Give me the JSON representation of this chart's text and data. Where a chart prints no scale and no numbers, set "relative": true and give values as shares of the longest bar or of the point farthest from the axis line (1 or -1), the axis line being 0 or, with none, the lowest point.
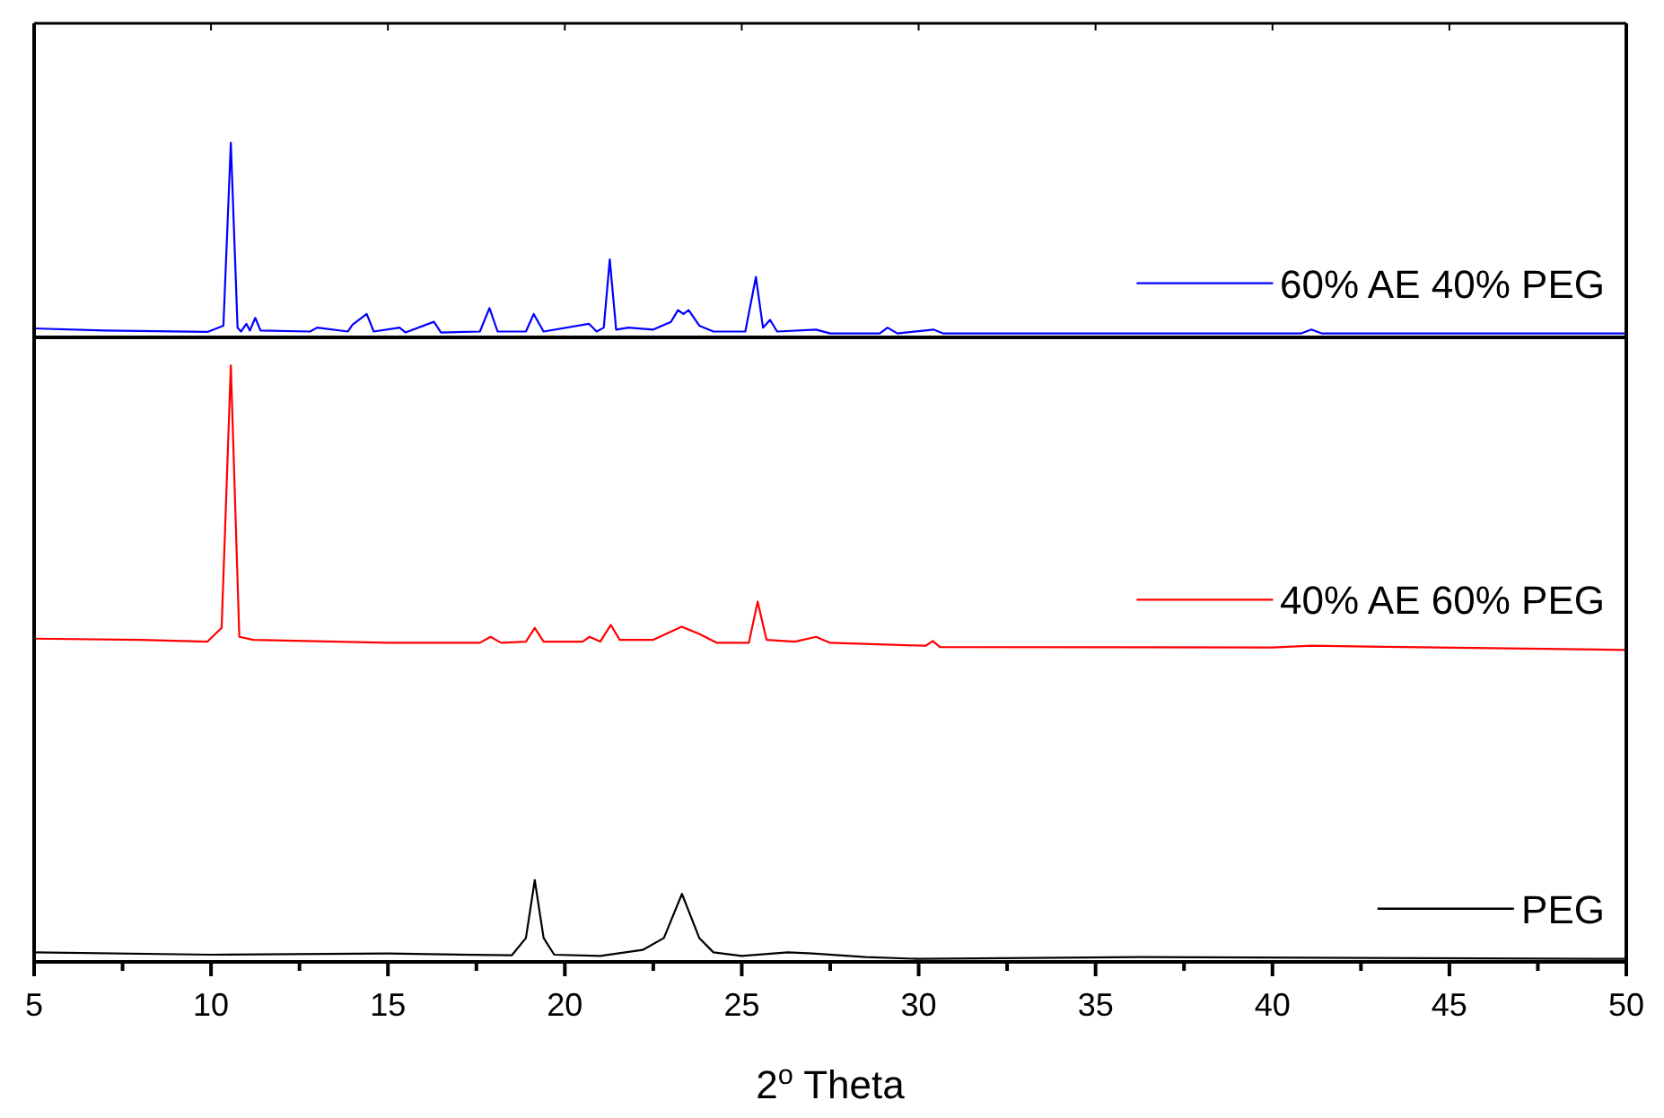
{
  "chart_data": [
    {
      "type": "line",
      "relative": true,
      "tick_labels": false,
      "legend": "right",
      "xlim": [
        5,
        50
      ],
      "xticks": [
        {
          "value": 5,
          "label": null
        },
        {
          "value": 10,
          "label": null
        },
        {
          "value": 15,
          "label": null
        },
        {
          "value": 20,
          "label": null
        },
        {
          "value": 25,
          "label": null
        },
        {
          "value": 30,
          "label": null
        },
        {
          "value": 35,
          "label": null
        },
        {
          "value": 40,
          "label": null
        },
        {
          "value": 45,
          "label": null
        },
        {
          "value": 50,
          "label": null
        }
      ],
      "series": [
        {
          "name": "60% AE 40% PEG",
          "color": "#0000ff",
          "x": [
            5,
            7,
            9.9,
            10.35,
            10.56,
            10.75,
            10.85,
            11.0,
            11.1,
            11.25,
            11.4,
            12.8,
            13.0,
            13.87,
            14.0,
            14.4,
            14.6,
            15.33,
            15.5,
            16.3,
            16.5,
            17.6,
            17.87,
            18.1,
            18.9,
            19.12,
            19.4,
            20.68,
            20.9,
            21.1,
            21.27,
            21.45,
            21.8,
            22.5,
            23.0,
            23.2,
            23.35,
            23.5,
            23.8,
            24.2,
            25.1,
            25.4,
            25.6,
            25.8,
            26.0,
            27.1,
            27.5,
            28.9,
            29.12,
            29.4,
            30.42,
            30.7,
            35,
            40.8,
            41.1,
            41.4,
            50
          ],
          "values": [
            0.046,
            0.035,
            0.028,
            0.06,
            1.0,
            0.05,
            0.03,
            0.07,
            0.035,
            0.1,
            0.035,
            0.03,
            0.05,
            0.03,
            0.065,
            0.12,
            0.03,
            0.05,
            0.025,
            0.08,
            0.025,
            0.03,
            0.15,
            0.03,
            0.03,
            0.12,
            0.03,
            0.07,
            0.03,
            0.05,
            0.4,
            0.04,
            0.05,
            0.04,
            0.08,
            0.14,
            0.12,
            0.14,
            0.06,
            0.03,
            0.03,
            0.31,
            0.05,
            0.09,
            0.03,
            0.04,
            0.02,
            0.02,
            0.05,
            0.02,
            0.04,
            0.02,
            0.02,
            0.02,
            0.04,
            0.02,
            0.02
          ]
        }
      ]
    },
    {
      "type": "line",
      "relative": true,
      "tick_labels": "x",
      "legend": "right",
      "xlim": [
        5,
        50
      ],
      "xlabel": "2$^{o}$ Theta",
      "xticks": [
        5,
        {
          "value": 7.5,
          "label": null
        },
        10,
        {
          "value": 12.5,
          "label": null
        },
        15,
        {
          "value": 17.5,
          "label": null
        },
        20,
        {
          "value": 22.5,
          "label": null
        },
        25,
        {
          "value": 27.5,
          "label": null
        },
        30,
        {
          "value": 32.5,
          "label": null
        },
        35,
        {
          "value": 37.5,
          "label": null
        },
        40,
        {
          "value": 42.5,
          "label": null
        },
        45,
        {
          "value": 47.5,
          "label": null
        },
        50
      ],
      "series": [
        {
          "name": "40% AE 60% PEG",
          "color": "#ff0000",
          "x": [
            5,
            8,
            9.9,
            10.3,
            10.56,
            10.8,
            11.2,
            15,
            17.6,
            17.9,
            18.2,
            18.9,
            19.15,
            19.4,
            20.5,
            20.7,
            21.0,
            21.3,
            21.55,
            22.5,
            23.3,
            23.8,
            24.3,
            25.2,
            25.45,
            25.7,
            26.5,
            27.1,
            27.5,
            30.2,
            30.4,
            30.6,
            40,
            41.1,
            50
          ],
          "values": [
            0.542,
            0.54,
            0.537,
            0.56,
            1.0,
            0.545,
            0.54,
            0.535,
            0.535,
            0.545,
            0.535,
            0.537,
            0.56,
            0.537,
            0.537,
            0.545,
            0.537,
            0.565,
            0.54,
            0.54,
            0.562,
            0.55,
            0.535,
            0.535,
            0.604,
            0.54,
            0.537,
            0.545,
            0.535,
            0.53,
            0.538,
            0.528,
            0.527,
            0.53,
            0.523
          ]
        },
        {
          "name": "PEG",
          "color": "#000000",
          "x": [
            5,
            10,
            15,
            18.5,
            18.9,
            19.15,
            19.4,
            19.7,
            21,
            22.2,
            22.8,
            23.31,
            23.8,
            24.2,
            25,
            26.3,
            27,
            28.5,
            30,
            36.3,
            50
          ],
          "values": [
            0.016,
            0.012,
            0.014,
            0.011,
            0.04,
            0.137,
            0.04,
            0.012,
            0.01,
            0.02,
            0.04,
            0.114,
            0.04,
            0.016,
            0.01,
            0.016,
            0.014,
            0.008,
            0.005,
            0.008,
            0.005
          ]
        }
      ]
    }
  ]
}
